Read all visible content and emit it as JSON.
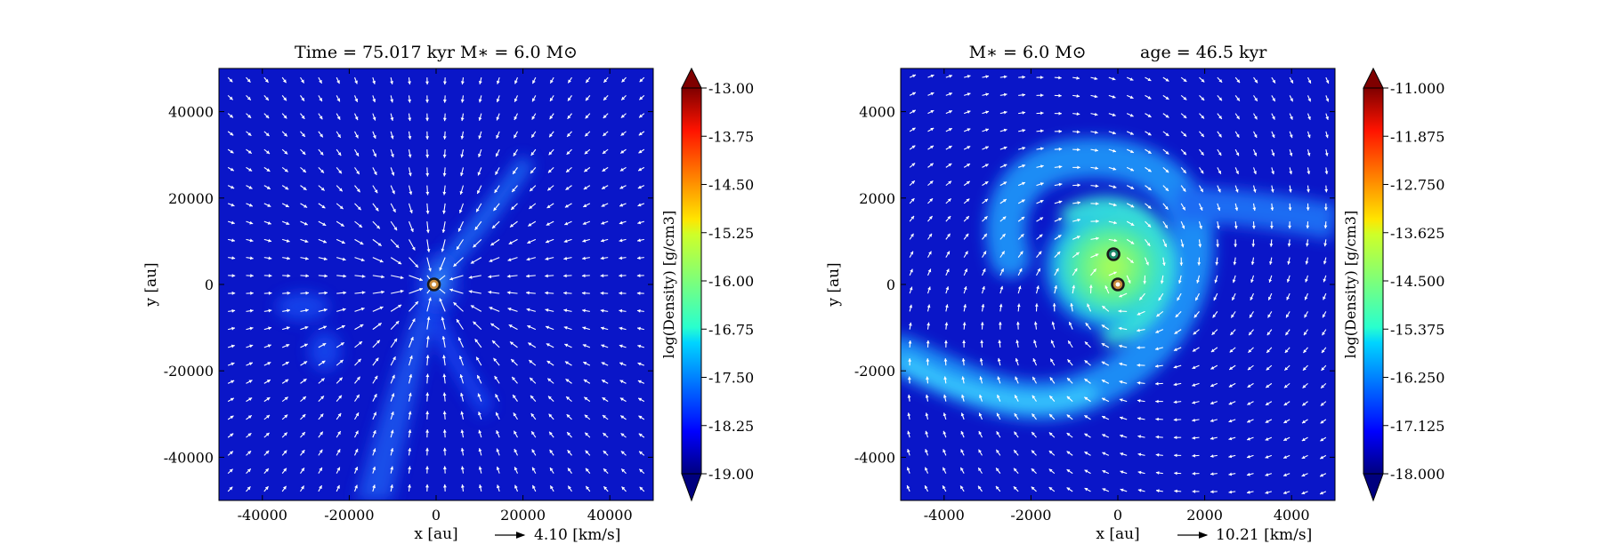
{
  "chart_data": [
    {
      "type": "heatmap",
      "title": "Time = 75.017 kyr    M∗ = 6.0 M⊙",
      "xlabel": "x [au]",
      "ylabel": "y [au]",
      "xlim": [
        -50000,
        50000
      ],
      "ylim": [
        -50000,
        50000
      ],
      "xticks": [
        -40000,
        -20000,
        0,
        20000,
        40000
      ],
      "yticks": [
        -40000,
        -20000,
        0,
        20000,
        40000
      ],
      "xtick_labels": [
        "-40000",
        "-20000",
        "0",
        "20000",
        "40000"
      ],
      "ytick_labels": [
        "-40000",
        "-20000",
        "0",
        "20000",
        "40000"
      ],
      "colorbar": {
        "label": "log(Density) [g/cm3]",
        "range": [
          -19.0,
          -13.0
        ],
        "ticks": [
          "-13.00",
          "-13.75",
          "-14.50",
          "-15.25",
          "-16.00",
          "-16.75",
          "-17.50",
          "-18.25",
          "-19.00"
        ],
        "colormap": "jet"
      },
      "vector_key": {
        "label": "4.10 [km/s]",
        "value": 4.1
      },
      "sinks": [
        {
          "x": -500,
          "y": 0
        }
      ]
    },
    {
      "type": "heatmap",
      "title": "M∗ = 6.0 M⊙          age = 46.5 kyr",
      "xlabel": "x [au]",
      "ylabel": "y [au]",
      "xlim": [
        -5000,
        5000
      ],
      "ylim": [
        -5000,
        5000
      ],
      "xticks": [
        -4000,
        -2000,
        0,
        2000,
        4000
      ],
      "yticks": [
        -4000,
        -2000,
        0,
        2000,
        4000
      ],
      "xtick_labels": [
        "-4000",
        "-2000",
        "0",
        "2000",
        "4000"
      ],
      "ytick_labels": [
        "-4000",
        "-2000",
        "0",
        "2000",
        "4000"
      ],
      "colorbar": {
        "label": "log(Density) [g/cm3]",
        "range": [
          -18.0,
          -11.0
        ],
        "ticks": [
          "-11.000",
          "-11.875",
          "-12.750",
          "-13.625",
          "-14.500",
          "-15.375",
          "-16.250",
          "-17.125",
          "-18.000"
        ],
        "colormap": "jet"
      },
      "vector_key": {
        "label": "10.21 [km/s]",
        "value": 10.21
      },
      "sinks": [
        {
          "x": -100,
          "y": 700
        },
        {
          "x": 0,
          "y": 0
        }
      ]
    }
  ]
}
